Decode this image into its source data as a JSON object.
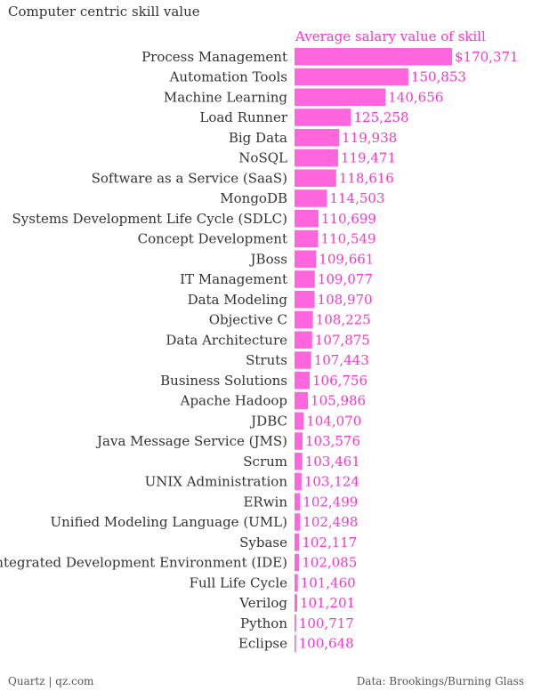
{
  "title": "Computer centric skill value",
  "footer": {
    "source_left": "Quartz | qz.com",
    "source_right": "Data: Brookings/Burning Glass"
  },
  "chart_data": {
    "type": "bar",
    "orientation": "horizontal",
    "title": "Computer centric skill value",
    "series_label": "Average salary value of skill",
    "bar_color": "#ff66dd",
    "label_color": "#ff33cc",
    "value_prefix_first": "$",
    "xlim": [
      100000,
      175000
    ],
    "categories": [
      "Process Management",
      "Automation Tools",
      "Machine Learning",
      "Load Runner",
      "Big Data",
      "NoSQL",
      "Software as a Service (SaaS)",
      "MongoDB",
      "Systems Development Life Cycle (SDLC)",
      "Concept Development",
      "JBoss",
      "IT Management",
      "Data Modeling",
      "Objective C",
      "Data Architecture",
      "Struts",
      "Business Solutions",
      "Apache Hadoop",
      "JDBC",
      "Java Message Service (JMS)",
      "Scrum",
      "UNIX Administration",
      "ERwin",
      "Unified Modeling Language (UML)",
      "Sybase",
      "Integrated Development Environment (IDE)",
      "Full Life Cycle",
      "Verilog",
      "Python",
      "Eclipse"
    ],
    "values": [
      170371,
      150853,
      140656,
      125258,
      119938,
      119471,
      118616,
      114503,
      110699,
      110549,
      109661,
      109077,
      108970,
      108225,
      107875,
      107443,
      106756,
      105986,
      104070,
      103576,
      103461,
      103124,
      102499,
      102498,
      102117,
      102085,
      101460,
      101201,
      100717,
      100648
    ]
  }
}
